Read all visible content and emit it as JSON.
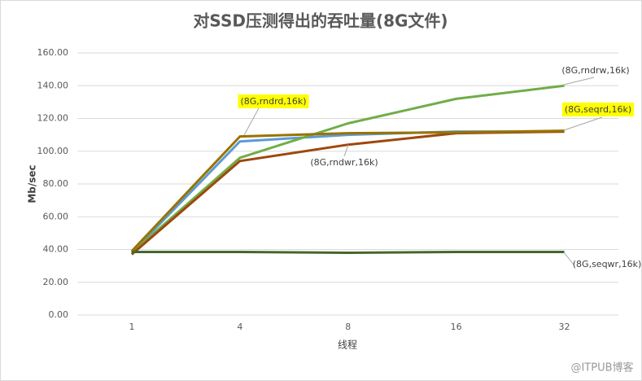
{
  "chart_data": {
    "type": "line",
    "title": "对SSD压测得出的吞吐量(8G文件)",
    "x_label": "线程",
    "y_label": "Mb/sec",
    "watermark": "@ITPUB博客",
    "categories": [
      "1",
      "4",
      "8",
      "16",
      "32"
    ],
    "ylim": [
      0,
      160
    ],
    "yticks": [
      {
        "value": 0,
        "label": "0.00"
      },
      {
        "value": 20,
        "label": "20.00"
      },
      {
        "value": 40,
        "label": "40.00"
      },
      {
        "value": 60,
        "label": "60.00"
      },
      {
        "value": 80,
        "label": "80.00"
      },
      {
        "value": 100,
        "label": "100.00"
      },
      {
        "value": 120,
        "label": "120.00"
      },
      {
        "value": 140,
        "label": "140.00"
      },
      {
        "value": 160,
        "label": "160.00"
      }
    ],
    "grid": true,
    "series": [
      {
        "name": "(8G,rndrd,16k)",
        "color": "#5b9bd5",
        "label_background": "#ffff00",
        "values": [
          38,
          106,
          110,
          112,
          112
        ]
      },
      {
        "name": "(8G,rndrw,16k)",
        "color": "#70ad47",
        "values": [
          38,
          96,
          117,
          132,
          140
        ]
      },
      {
        "name": "(8G,rndwr,16k)",
        "color": "#9e480e",
        "values": [
          37,
          94,
          104,
          111,
          112
        ]
      },
      {
        "name": "(8G,seqrd,16k)",
        "color": "#997300",
        "label_background": "#ffff00",
        "values": [
          39,
          109,
          111,
          111.5,
          112.5
        ]
      },
      {
        "name": "(8G,seqwr,16k)",
        "color": "#43682b",
        "values": [
          38.5,
          38.5,
          38,
          38.5,
          38.5
        ]
      }
    ]
  }
}
